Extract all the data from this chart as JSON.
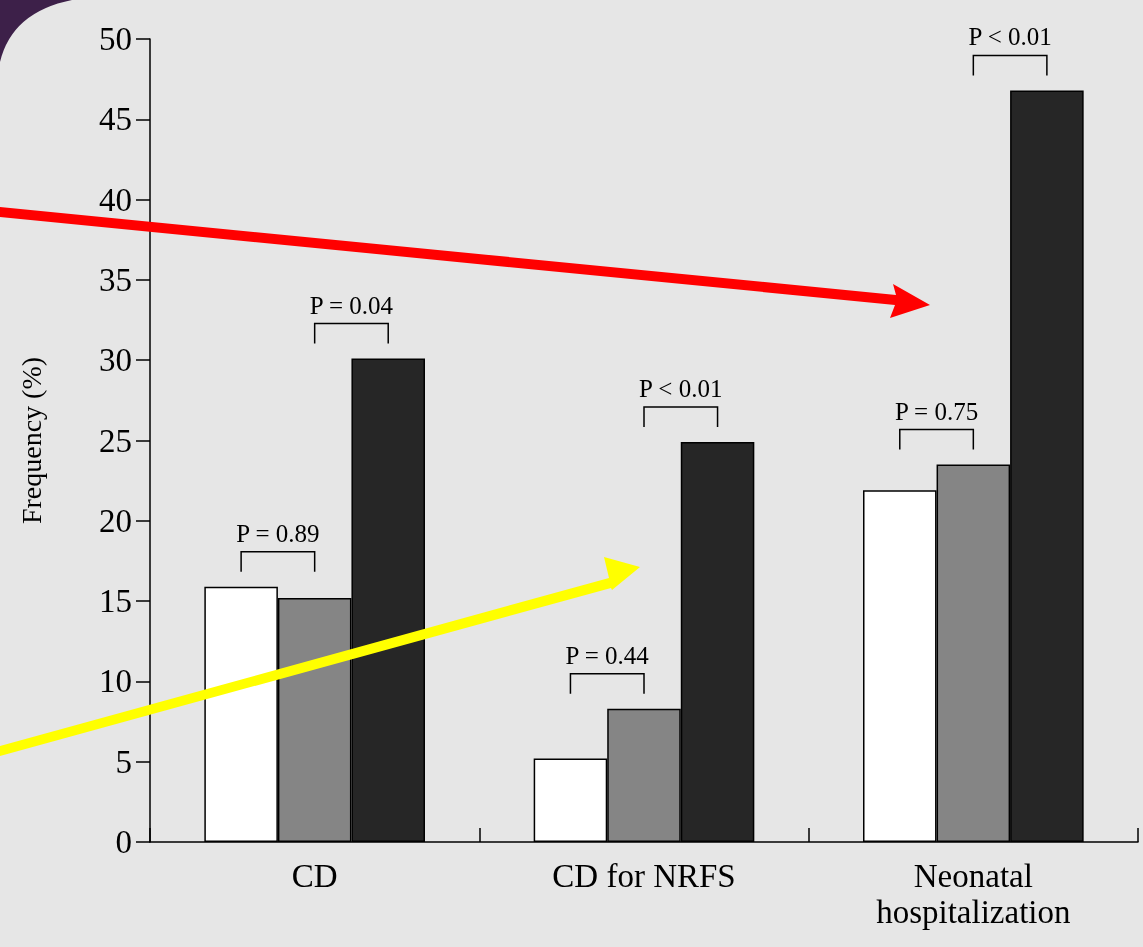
{
  "chart_data": {
    "type": "bar",
    "ylabel": "Frequency (%)",
    "categories": [
      "CD",
      "CD for NRFS",
      "Neonatal\nhospitalization"
    ],
    "series": [
      {
        "color": "#ffffff",
        "values": [
          15.9,
          5.2,
          21.9
        ]
      },
      {
        "color": "#858585",
        "values": [
          15.2,
          8.3,
          23.5
        ]
      },
      {
        "color": "#262626",
        "values": [
          30.1,
          24.9,
          46.8
        ]
      }
    ],
    "ylim": [
      0,
      50
    ],
    "yticks": [
      0,
      5,
      10,
      15,
      20,
      25,
      30,
      35,
      40,
      45,
      50
    ],
    "grid": false,
    "annotations": [
      "P = 0.89",
      "P = 0.04",
      "P = 0.44",
      "P < 0.01",
      "P = 0.75",
      "P < 0.01"
    ]
  }
}
